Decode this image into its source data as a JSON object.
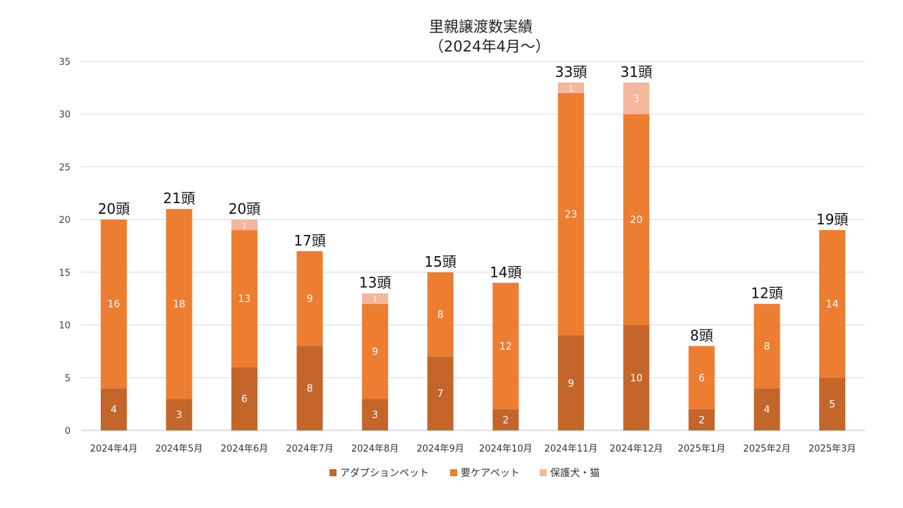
{
  "chart_data": {
    "type": "bar",
    "stacked": true,
    "title_lines": [
      "里親譲渡数実績",
      "（2024年4月～）"
    ],
    "categories": [
      "2024年4月",
      "2024年5月",
      "2024年6月",
      "2024年7月",
      "2024年8月",
      "2024年9月",
      "2024年10月",
      "2024年11月",
      "2024年12月",
      "2025年1月",
      "2025年2月",
      "2025年3月"
    ],
    "series": [
      {
        "name": "アダプションペット",
        "color": "#C4652A",
        "values": [
          4,
          3,
          6,
          8,
          3,
          7,
          2,
          9,
          10,
          2,
          4,
          5
        ]
      },
      {
        "name": "要ケアペット",
        "color": "#ED7D31",
        "values": [
          16,
          18,
          13,
          9,
          9,
          8,
          12,
          23,
          20,
          6,
          8,
          14
        ]
      },
      {
        "name": "保護犬・猫",
        "color": "#F4B79B",
        "values": [
          0,
          0,
          1,
          0,
          1,
          0,
          0,
          1,
          3,
          0,
          0,
          0
        ]
      }
    ],
    "totals": [
      "20頭",
      "21頭",
      "20頭",
      "17頭",
      "13頭",
      "15頭",
      "14頭",
      "33頭",
      "31頭",
      "8頭",
      "12頭",
      "19頭"
    ],
    "yticks": [
      "0",
      "5",
      "10",
      "15",
      "20",
      "25",
      "30",
      "35"
    ],
    "ylim": [
      0,
      35
    ],
    "grid": true,
    "legend_position": "bottom"
  }
}
